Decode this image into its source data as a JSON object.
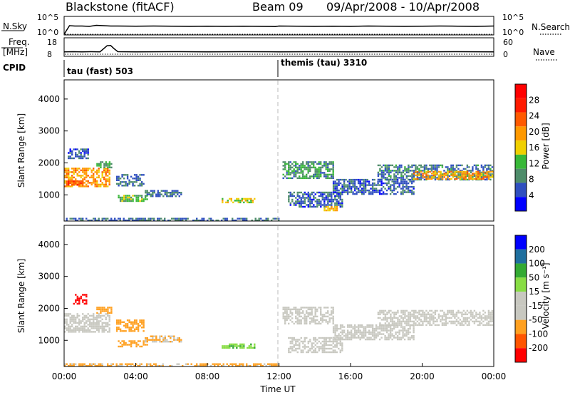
{
  "header": {
    "station": "Blackstone (fitACF)",
    "beam": "Beam 09",
    "date_range": "09/Apr/2008 - 10/Apr/2008"
  },
  "left_labels": {
    "nsky": "N.Sky",
    "freq": "Freq.",
    "freq_unit": "[MHz]",
    "cpid": "CPID"
  },
  "right_labels": {
    "nsearch": "N.Search",
    "nave": "Nave"
  },
  "cpid_segments": [
    {
      "label": "tau (fast) 503",
      "start_hour": 0
    },
    {
      "label": "themis (tau) 3310",
      "start_hour": 12
    }
  ],
  "colors": {
    "power_scale": [
      "#0000ff",
      "#2f4fbf",
      "#4e8c6a",
      "#38b838",
      "#f0d000",
      "#ff9900",
      "#ff5a00",
      "#ff1a00",
      "#ff0000"
    ],
    "velocity_scale": [
      "#ff0000",
      "#ff3300",
      "#ff8800",
      "#ffbb33",
      "#c8c8c0",
      "#c8c8c0",
      "#88dd44",
      "#33aa33",
      "#1f6f9f",
      "#0000ff"
    ]
  },
  "chart_data": [
    {
      "type": "line",
      "title": "N.Sky / N.Search",
      "x_hours": [
        0,
        0.3,
        0.6,
        1.0,
        1.4,
        1.8,
        2.2,
        2.6,
        3.0,
        4.0,
        5.0,
        6.0,
        7.0,
        8.0,
        9.0,
        10.0,
        11.0,
        11.8,
        12.0,
        13.0,
        14.0,
        15.0,
        16.0,
        17.0,
        18.0,
        19.0,
        20.0,
        21.0,
        22.0,
        23.0,
        24.0
      ],
      "nsky_log10": [
        0,
        2.5,
        2.4,
        2.4,
        2.3,
        2.6,
        2.5,
        2.4,
        2.4,
        2.35,
        2.4,
        2.35,
        2.3,
        2.35,
        2.3,
        2.35,
        2.3,
        2.25,
        2.4,
        2.35,
        2.3,
        2.35,
        2.3,
        2.4,
        2.35,
        2.3,
        2.35,
        2.4,
        2.35,
        2.3,
        2.4
      ],
      "left_ticks": [
        "10^5",
        "10^0"
      ],
      "right_ticks": [
        "10^5",
        "10^0"
      ],
      "ylim_log10": [
        0,
        5
      ]
    },
    {
      "type": "line",
      "title": "Freq / Nave",
      "x_hours": [
        0,
        0.5,
        1.0,
        1.5,
        2.0,
        2.2,
        2.4,
        2.6,
        2.8,
        3.0,
        4.0,
        6.0,
        8.0,
        10.0,
        12.0,
        14.0,
        16.0,
        18.0,
        20.0,
        22.0,
        24.0
      ],
      "freq_mhz": [
        10.2,
        10.3,
        10.2,
        10.3,
        10.2,
        12.0,
        13.8,
        13.9,
        12.0,
        10.3,
        10.2,
        10.3,
        10.2,
        10.3,
        10.2,
        10.3,
        10.2,
        10.3,
        10.2,
        10.3,
        10.2
      ],
      "left_ticks": [
        18,
        8
      ],
      "right_ticks": [
        60,
        0
      ],
      "ylim_mhz": [
        8,
        18
      ]
    },
    {
      "type": "heatmap",
      "parameter": "Power",
      "ylabel": "Slant Range [km]",
      "colorbar_label": "Power [dB]",
      "colorbar_ticks": [
        4,
        8,
        12,
        16,
        20,
        24,
        28
      ],
      "y_ticks": [
        1000,
        2000,
        3000,
        4000
      ],
      "ylim_km": [
        180,
        4600
      ],
      "xlim_hours": [
        0,
        24
      ],
      "regions": [
        {
          "t0": 0.0,
          "t1": 2.5,
          "r0": 1250,
          "r1": 1850,
          "level": 22
        },
        {
          "t0": 0.1,
          "t1": 1.0,
          "r0": 1300,
          "r1": 1450,
          "level": 28
        },
        {
          "t0": 0.2,
          "t1": 1.3,
          "r0": 2150,
          "r1": 2450,
          "level": 6
        },
        {
          "t0": 1.8,
          "t1": 2.6,
          "r0": 1850,
          "r1": 2050,
          "level": 12
        },
        {
          "t0": 2.9,
          "t1": 4.4,
          "r0": 1300,
          "r1": 1650,
          "level": 8
        },
        {
          "t0": 3.0,
          "t1": 4.6,
          "r0": 800,
          "r1": 1000,
          "level": 14
        },
        {
          "t0": 4.5,
          "t1": 6.5,
          "r0": 950,
          "r1": 1150,
          "level": 8
        },
        {
          "t0": 8.8,
          "t1": 10.6,
          "r0": 750,
          "r1": 900,
          "level": 17
        },
        {
          "t0": 0.0,
          "t1": 12.0,
          "r0": 200,
          "r1": 280,
          "level": 8
        },
        {
          "t0": 12.2,
          "t1": 15.0,
          "r0": 1500,
          "r1": 2050,
          "level": 11
        },
        {
          "t0": 12.5,
          "t1": 15.5,
          "r0": 650,
          "r1": 1100,
          "level": 7
        },
        {
          "t0": 14.5,
          "t1": 15.2,
          "r0": 530,
          "r1": 650,
          "level": 20
        },
        {
          "t0": 15.0,
          "t1": 19.5,
          "r0": 1050,
          "r1": 1500,
          "level": 7
        },
        {
          "t0": 17.5,
          "t1": 23.9,
          "r0": 1500,
          "r1": 1950,
          "level": 9
        },
        {
          "t0": 19.5,
          "t1": 23.9,
          "r0": 1500,
          "r1": 1750,
          "level": 22
        }
      ]
    },
    {
      "type": "heatmap",
      "parameter": "Velocity",
      "ylabel": "Slant Range [km]",
      "xlabel": "Time UT",
      "colorbar_label": "Velocity [m s^-1]",
      "colorbar_ticks": [
        200,
        100,
        50,
        15,
        -15,
        -50,
        -100,
        -200
      ],
      "y_ticks": [
        1000,
        2000,
        3000,
        4000
      ],
      "x_ticks": [
        "00:00",
        "04:00",
        "08:00",
        "12:00",
        "16:00",
        "20:00",
        "00:00"
      ],
      "ylim_km": [
        180,
        4600
      ],
      "xlim_hours": [
        0,
        24
      ],
      "regions": [
        {
          "t0": 0.0,
          "t1": 2.5,
          "r0": 1250,
          "r1": 1850,
          "level": 0
        },
        {
          "t0": 0.5,
          "t1": 1.2,
          "r0": 2150,
          "r1": 2450,
          "level": -200
        },
        {
          "t0": 1.8,
          "t1": 2.6,
          "r0": 1850,
          "r1": 2050,
          "level": -50
        },
        {
          "t0": 2.9,
          "t1": 4.4,
          "r0": 1300,
          "r1": 1650,
          "level": -60
        },
        {
          "t0": 3.0,
          "t1": 4.6,
          "r0": 800,
          "r1": 1000,
          "level": -60
        },
        {
          "t0": 4.5,
          "t1": 6.5,
          "r0": 950,
          "r1": 1150,
          "level": -30
        },
        {
          "t0": 8.8,
          "t1": 10.6,
          "r0": 750,
          "r1": 900,
          "level": 40
        },
        {
          "t0": 0.0,
          "t1": 12.0,
          "r0": 200,
          "r1": 280,
          "level": -40
        },
        {
          "t0": 12.2,
          "t1": 15.0,
          "r0": 1500,
          "r1": 2050,
          "level": 0
        },
        {
          "t0": 12.5,
          "t1": 15.5,
          "r0": 650,
          "r1": 1100,
          "level": 0
        },
        {
          "t0": 15.0,
          "t1": 19.5,
          "r0": 1050,
          "r1": 1500,
          "level": 0
        },
        {
          "t0": 17.5,
          "t1": 23.9,
          "r0": 1500,
          "r1": 1950,
          "level": 0
        }
      ]
    }
  ]
}
